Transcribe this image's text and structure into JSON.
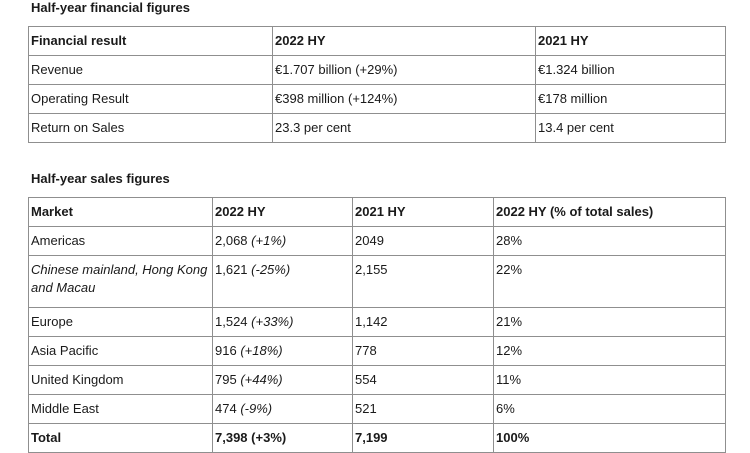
{
  "financial": {
    "title": "Half-year financial figures",
    "headers": [
      "Financial result",
      "2022 HY",
      "2021 HY"
    ],
    "rows": [
      {
        "label": "Revenue",
        "hy2022": "€1.707 billion (+29%)",
        "hy2021": "€1.324 billion"
      },
      {
        "label": "Operating Result",
        "hy2022": "€398 million (+124%)",
        "hy2021": "€178 million"
      },
      {
        "label": "Return on Sales",
        "hy2022": "23.3 per cent",
        "hy2021": "13.4 per cent"
      }
    ]
  },
  "sales": {
    "title": "Half-year sales figures",
    "headers": [
      "Market",
      "2022 HY",
      "2021 HY",
      "2022 HY (% of total sales)"
    ],
    "rows": [
      {
        "market": "Americas",
        "hy2022": "2,068",
        "change": "(+1%)",
        "hy2021": "2049",
        "share": "28%"
      },
      {
        "market": "Chinese mainland, Hong Kong and Macau",
        "hy2022": "1,621",
        "change": "(-25%)",
        "hy2021": "2,155",
        "share": "22%"
      },
      {
        "market": "Europe",
        "hy2022": "1,524",
        "change": "(+33%)",
        "hy2021": "1,142",
        "share": "21%"
      },
      {
        "market": "Asia Pacific",
        "hy2022": "916",
        "change": "(+18%)",
        "hy2021": "778",
        "share": "12%"
      },
      {
        "market": "United Kingdom",
        "hy2022": "795",
        "change": "(+44%)",
        "hy2021": "554",
        "share": "11%"
      },
      {
        "market": "Middle East",
        "hy2022": "474",
        "change": "(-9%)",
        "hy2021": "521",
        "share": "6%"
      }
    ],
    "total": {
      "market": "Total",
      "hy2022": "7,398",
      "change": "(+3%)",
      "hy2021": "7,199",
      "share": "100%"
    }
  }
}
